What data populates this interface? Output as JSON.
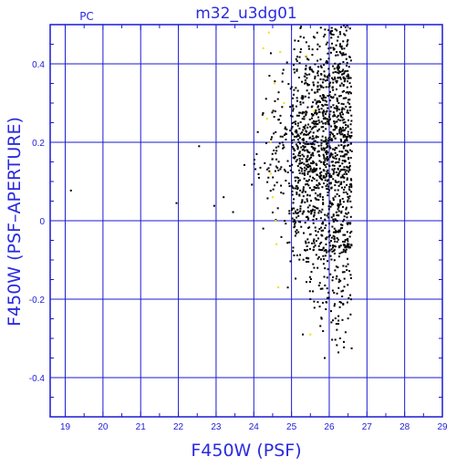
{
  "chart_data": {
    "type": "scatter",
    "title": "m32_u3dg01",
    "corner_label": "PC",
    "xlabel": "F450W (PSF)",
    "ylabel": "F450W (PSF–APERTURE)",
    "xlim": [
      18.6,
      29.0
    ],
    "ylim": [
      -0.5,
      0.5
    ],
    "x_ticks": [
      19,
      20,
      21,
      22,
      23,
      24,
      25,
      26,
      27,
      28,
      29
    ],
    "y_ticks": [
      -0.4,
      -0.2,
      0,
      0.2,
      0.4
    ],
    "y_tick_labels": [
      "-0.4",
      "-0.2",
      "0",
      "0.2",
      "0.4"
    ],
    "grid": true,
    "colors": {
      "frame": "#1a1ad0",
      "grid": "#1a1ad0",
      "text": "#2a2ae0",
      "point": "#000000",
      "highlight": "#f0e000"
    },
    "series": [
      {
        "color": "#000000",
        "points": [
          [
            19.15,
            0.077
          ],
          [
            21.95,
            0.045
          ],
          [
            22.55,
            0.19
          ],
          [
            22.95,
            0.038
          ],
          [
            23.2,
            0.06
          ],
          [
            23.45,
            0.022
          ],
          [
            23.75,
            0.142
          ],
          [
            23.95,
            0.092
          ],
          [
            24.25,
            -0.02
          ],
          [
            24.55,
            0.09
          ],
          [
            25.72,
            0.02
          ],
          [
            25.88,
            -0.35
          ],
          [
            25.3,
            -0.29
          ],
          [
            25.5,
            -0.2
          ],
          [
            25.8,
            -0.25
          ],
          [
            25.6,
            -0.12
          ]
        ]
      },
      {
        "color": "#f0e000",
        "points": [
          [
            24.25,
            0.44
          ],
          [
            24.35,
            0.26
          ],
          [
            24.45,
            0.12
          ],
          [
            24.5,
            0.06
          ],
          [
            24.6,
            -0.06
          ],
          [
            24.65,
            -0.17
          ],
          [
            24.55,
            0.35
          ],
          [
            24.4,
            0.48
          ],
          [
            24.7,
            0.43
          ],
          [
            25.4,
            0.42
          ],
          [
            25.5,
            -0.29
          ],
          [
            25.6,
            0.28
          ],
          [
            24.8,
            0.3
          ],
          [
            24.45,
            0.2
          ],
          [
            24.58,
            0.0
          ]
        ]
      }
    ],
    "dense_cloud": {
      "color": "#000000",
      "description_free_params": true,
      "x_range": [
        24.0,
        26.6
      ],
      "y_range": [
        -0.35,
        0.5
      ],
      "count": 1600,
      "seed": 7
    }
  }
}
